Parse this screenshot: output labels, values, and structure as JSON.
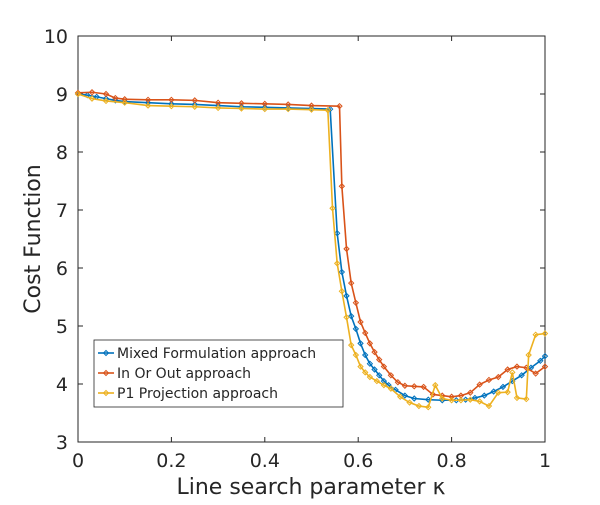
{
  "chart_data": {
    "type": "line",
    "title": "",
    "xlabel": "Line search parameter κ",
    "ylabel": "Cost Function",
    "xlim": [
      0,
      1
    ],
    "ylim": [
      3,
      10
    ],
    "xticks": [
      "0",
      "0.2",
      "0.4",
      "0.6",
      "0.8",
      "1"
    ],
    "yticks": [
      "3",
      "4",
      "5",
      "6",
      "7",
      "8",
      "9",
      "10"
    ],
    "legend_position": "bottom-left",
    "series": [
      {
        "name": "Mixed Formulation approach",
        "color": "#0072BD",
        "marker": "diamond",
        "points": [
          [
            0,
            9.0
          ],
          [
            0.02,
            8.98
          ],
          [
            0.04,
            8.95
          ],
          [
            0.06,
            8.92
          ],
          [
            0.08,
            8.89
          ],
          [
            0.1,
            8.87
          ],
          [
            0.15,
            8.85
          ],
          [
            0.2,
            8.83
          ],
          [
            0.25,
            8.82
          ],
          [
            0.3,
            8.8
          ],
          [
            0.35,
            8.78
          ],
          [
            0.4,
            8.77
          ],
          [
            0.45,
            8.76
          ],
          [
            0.5,
            8.75
          ],
          [
            0.54,
            8.74
          ],
          [
            0.555,
            6.6
          ],
          [
            0.565,
            5.93
          ],
          [
            0.575,
            5.52
          ],
          [
            0.585,
            5.17
          ],
          [
            0.595,
            4.95
          ],
          [
            0.605,
            4.7
          ],
          [
            0.615,
            4.5
          ],
          [
            0.625,
            4.35
          ],
          [
            0.635,
            4.25
          ],
          [
            0.645,
            4.15
          ],
          [
            0.655,
            4.05
          ],
          [
            0.665,
            3.98
          ],
          [
            0.68,
            3.9
          ],
          [
            0.7,
            3.8
          ],
          [
            0.72,
            3.75
          ],
          [
            0.75,
            3.73
          ],
          [
            0.78,
            3.72
          ],
          [
            0.81,
            3.72
          ],
          [
            0.83,
            3.73
          ],
          [
            0.85,
            3.76
          ],
          [
            0.87,
            3.8
          ],
          [
            0.89,
            3.87
          ],
          [
            0.91,
            3.95
          ],
          [
            0.93,
            4.05
          ],
          [
            0.95,
            4.15
          ],
          [
            0.97,
            4.28
          ],
          [
            0.99,
            4.4
          ],
          [
            1.0,
            4.48
          ]
        ]
      },
      {
        "name": "In Or Out approach",
        "color": "#D95319",
        "marker": "diamond",
        "points": [
          [
            0,
            9.02
          ],
          [
            0.03,
            9.03
          ],
          [
            0.06,
            9.0
          ],
          [
            0.08,
            8.93
          ],
          [
            0.1,
            8.91
          ],
          [
            0.15,
            8.9
          ],
          [
            0.2,
            8.9
          ],
          [
            0.25,
            8.89
          ],
          [
            0.3,
            8.85
          ],
          [
            0.35,
            8.84
          ],
          [
            0.4,
            8.83
          ],
          [
            0.45,
            8.82
          ],
          [
            0.5,
            8.8
          ],
          [
            0.56,
            8.79
          ],
          [
            0.565,
            7.41
          ],
          [
            0.575,
            6.33
          ],
          [
            0.585,
            5.74
          ],
          [
            0.595,
            5.4
          ],
          [
            0.605,
            5.07
          ],
          [
            0.615,
            4.88
          ],
          [
            0.625,
            4.7
          ],
          [
            0.635,
            4.55
          ],
          [
            0.645,
            4.42
          ],
          [
            0.655,
            4.3
          ],
          [
            0.67,
            4.15
          ],
          [
            0.685,
            4.03
          ],
          [
            0.7,
            3.97
          ],
          [
            0.72,
            3.96
          ],
          [
            0.74,
            3.95
          ],
          [
            0.76,
            3.82
          ],
          [
            0.78,
            3.8
          ],
          [
            0.8,
            3.78
          ],
          [
            0.82,
            3.8
          ],
          [
            0.84,
            3.85
          ],
          [
            0.86,
            3.99
          ],
          [
            0.88,
            4.07
          ],
          [
            0.9,
            4.12
          ],
          [
            0.92,
            4.25
          ],
          [
            0.94,
            4.3
          ],
          [
            0.96,
            4.28
          ],
          [
            0.98,
            4.18
          ],
          [
            1.0,
            4.3
          ]
        ]
      },
      {
        "name": "P1 Projection approach",
        "color": "#EDB120",
        "marker": "diamond",
        "points": [
          [
            0,
            9.0
          ],
          [
            0.03,
            8.92
          ],
          [
            0.06,
            8.88
          ],
          [
            0.1,
            8.85
          ],
          [
            0.15,
            8.8
          ],
          [
            0.2,
            8.79
          ],
          [
            0.25,
            8.78
          ],
          [
            0.3,
            8.76
          ],
          [
            0.35,
            8.75
          ],
          [
            0.4,
            8.74
          ],
          [
            0.45,
            8.74
          ],
          [
            0.5,
            8.73
          ],
          [
            0.535,
            8.72
          ],
          [
            0.545,
            7.03
          ],
          [
            0.555,
            6.08
          ],
          [
            0.565,
            5.6
          ],
          [
            0.575,
            5.15
          ],
          [
            0.585,
            4.67
          ],
          [
            0.595,
            4.5
          ],
          [
            0.605,
            4.3
          ],
          [
            0.615,
            4.2
          ],
          [
            0.625,
            4.12
          ],
          [
            0.64,
            4.05
          ],
          [
            0.655,
            3.98
          ],
          [
            0.67,
            3.92
          ],
          [
            0.69,
            3.78
          ],
          [
            0.71,
            3.68
          ],
          [
            0.73,
            3.62
          ],
          [
            0.75,
            3.6
          ],
          [
            0.765,
            3.98
          ],
          [
            0.78,
            3.75
          ],
          [
            0.8,
            3.72
          ],
          [
            0.82,
            3.72
          ],
          [
            0.84,
            3.73
          ],
          [
            0.86,
            3.7
          ],
          [
            0.88,
            3.62
          ],
          [
            0.9,
            3.85
          ],
          [
            0.92,
            3.86
          ],
          [
            0.93,
            4.2
          ],
          [
            0.94,
            3.76
          ],
          [
            0.96,
            3.74
          ],
          [
            0.965,
            4.5
          ],
          [
            0.98,
            4.85
          ],
          [
            1.0,
            4.87
          ]
        ]
      }
    ]
  }
}
